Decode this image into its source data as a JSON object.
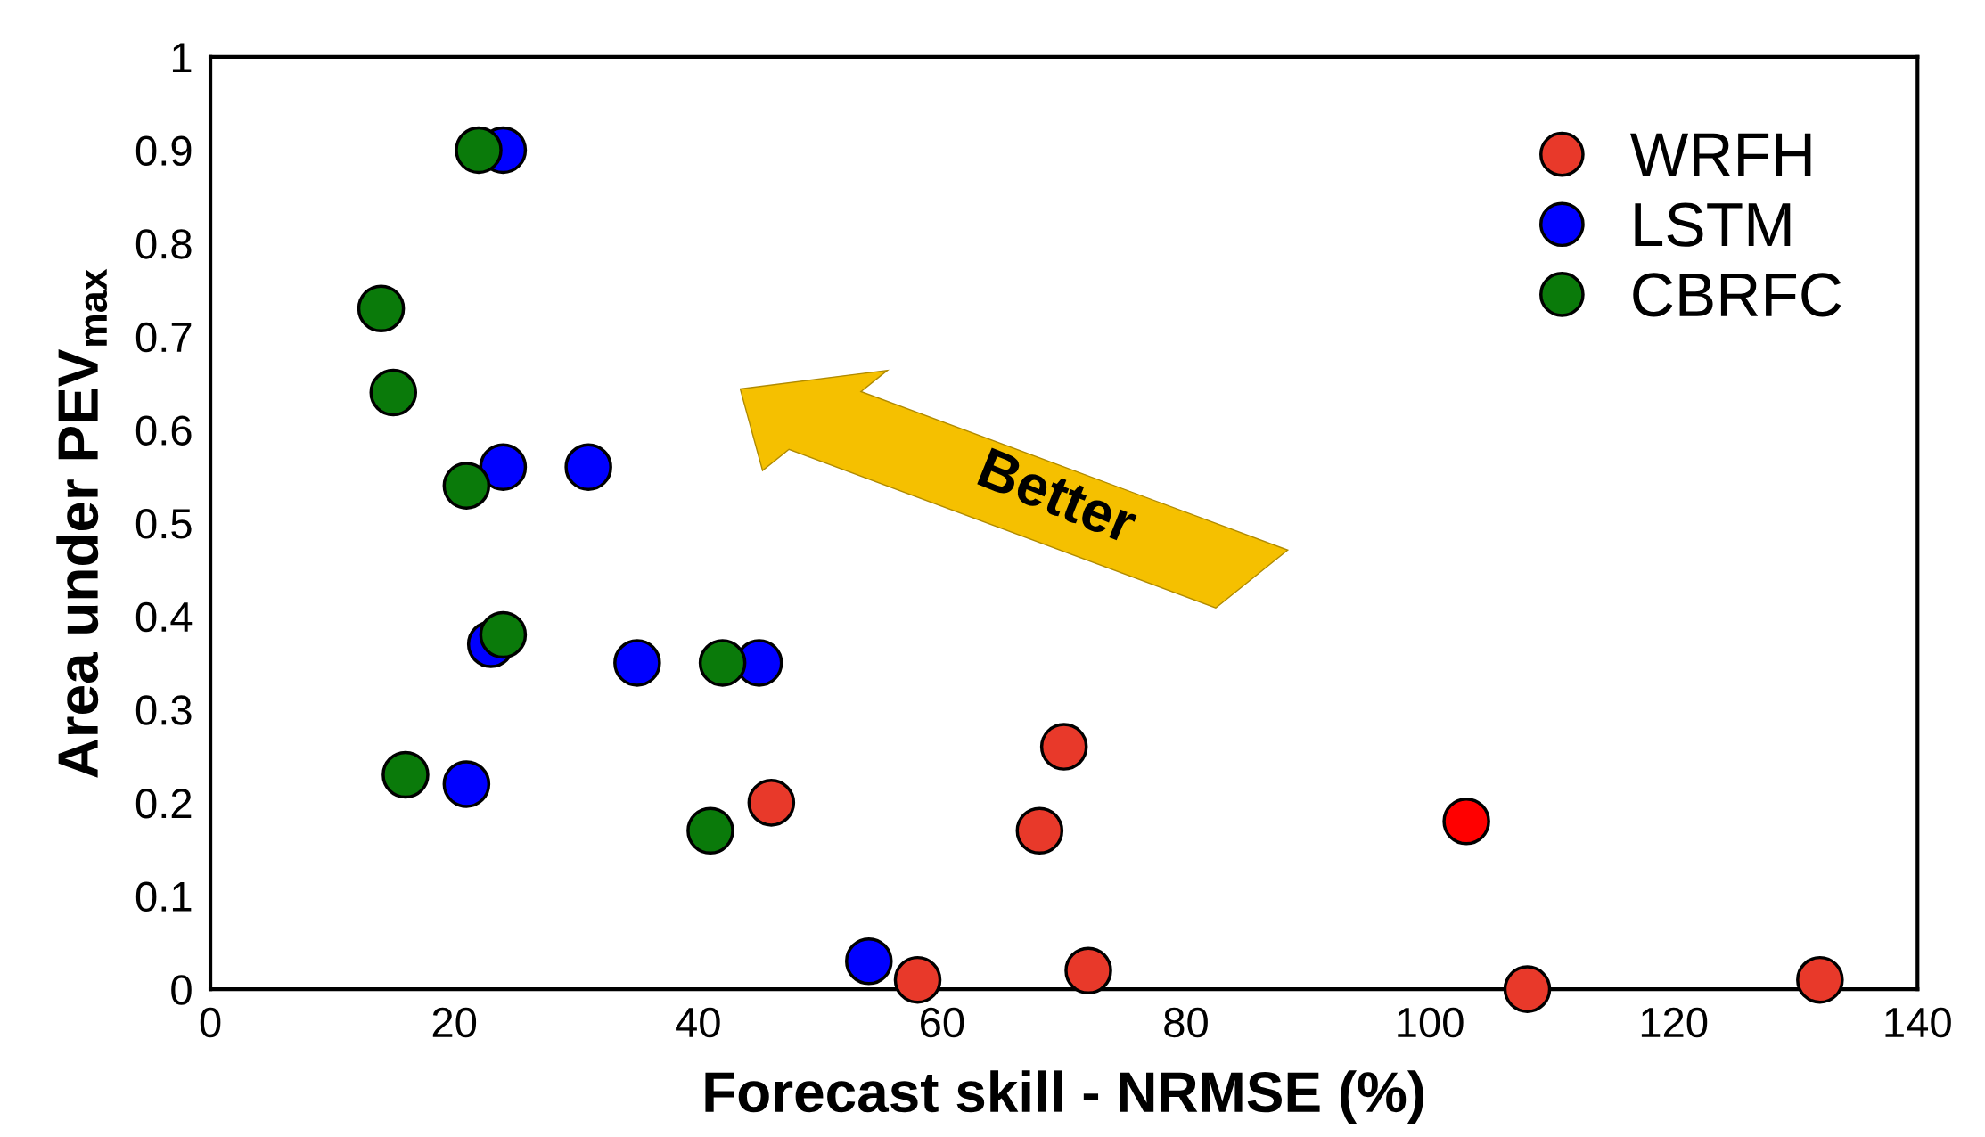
{
  "chart_data": {
    "type": "scatter",
    "xlabel": "Forecast skill - NRMSE (%)",
    "ylabel": "Area under PEV$_{max}$",
    "annotations": [
      "Better"
    ],
    "series": [
      {
        "name": "WRFH",
        "color": "#e8392a",
        "colors": [
          "#e8392a",
          "#e8392a",
          "#e8392a",
          "#ff0000",
          "#e8392a",
          "#e8392a",
          "#e8392a",
          "#e8392a"
        ],
        "x": [
          46,
          70,
          68,
          103,
          58,
          72,
          108,
          132
        ],
        "values": [
          0.2,
          0.26,
          0.17,
          0.18,
          0.01,
          0.02,
          0.0,
          0.01
        ]
      },
      {
        "name": "LSTM",
        "color": "#0000ff",
        "x": [
          24,
          24,
          31,
          23,
          35,
          45,
          21,
          54
        ],
        "values": [
          0.9,
          0.56,
          0.56,
          0.37,
          0.35,
          0.35,
          0.22,
          0.03
        ]
      },
      {
        "name": "CBRFC",
        "color": "#0a7a0a",
        "x": [
          22,
          14,
          15,
          21,
          24,
          42,
          16,
          41
        ],
        "values": [
          0.9,
          0.73,
          0.64,
          0.54,
          0.38,
          0.35,
          0.23,
          0.17
        ]
      }
    ],
    "xlim": [
      0,
      140
    ],
    "xticks": [
      0,
      20,
      40,
      60,
      80,
      100,
      120,
      140
    ],
    "ylim": [
      0,
      1
    ],
    "yticks": [
      0,
      0.1,
      0.2,
      0.3,
      0.4,
      0.5,
      0.6,
      0.7,
      0.8,
      0.9,
      1
    ],
    "grid": false,
    "legend": "top right",
    "marker": "circle"
  }
}
